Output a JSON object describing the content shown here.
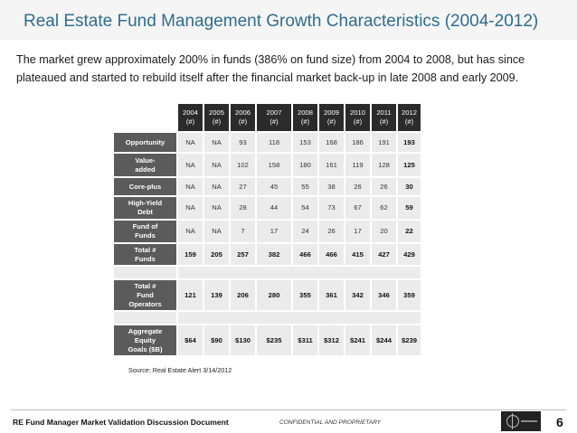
{
  "title": "Real Estate Fund Management Growth Characteristics (2004-2012)",
  "subtitle": "The market grew approximately 200% in funds (386% on fund size) from 2004 to 2008, but has since plateaued and started to rebuild itself after the financial market back-up in late 2008 and early 2009.",
  "table": {
    "years": [
      "2004",
      "2005",
      "2006",
      "2007",
      "2008",
      "2009",
      "2010",
      "2011",
      "2012"
    ],
    "unit": "(#)",
    "rows": [
      {
        "label": "Opportunity",
        "values": [
          "NA",
          "NA",
          "93",
          "118",
          "153",
          "168",
          "186",
          "191",
          "193"
        ]
      },
      {
        "label": "Value-\nadded",
        "values": [
          "NA",
          "NA",
          "102",
          "158",
          "180",
          "161",
          "119",
          "128",
          "125"
        ]
      },
      {
        "label": "Core-plus",
        "values": [
          "NA",
          "NA",
          "27",
          "45",
          "55",
          "38",
          "26",
          "26",
          "30"
        ]
      },
      {
        "label": "High-Yield\nDebt",
        "values": [
          "NA",
          "NA",
          "28",
          "44",
          "54",
          "73",
          "67",
          "62",
          "59"
        ]
      },
      {
        "label": "Fund of\nFunds",
        "values": [
          "NA",
          "NA",
          "7",
          "17",
          "24",
          "26",
          "17",
          "20",
          "22"
        ]
      },
      {
        "label": "Total #\nFunds",
        "values": [
          "159",
          "205",
          "257",
          "382",
          "466",
          "466",
          "415",
          "427",
          "429"
        ]
      },
      {
        "label": "Total #\nFund\nOperators",
        "values": [
          "121",
          "139",
          "206",
          "280",
          "355",
          "361",
          "342",
          "346",
          "359"
        ]
      },
      {
        "label": "Aggregate\nEquity\nGoals ($B)",
        "values": [
          "$64",
          "$90",
          "$130",
          "$235",
          "$311",
          "$312",
          "$241",
          "$244",
          "$239"
        ]
      }
    ]
  },
  "source": "Source:  Real Estate Alert 3/14/2012",
  "footer": {
    "document": "RE Fund Manager Market Validation Discussion Document",
    "confidential": "CONFIDENTIAL AND PROPRIETARY",
    "page": "6"
  },
  "colors": {
    "title": "#2e6d8e",
    "header_bg": "#2b2b2b",
    "label_bg": "#5b5b5b",
    "cell_bg": "#ebebeb"
  }
}
